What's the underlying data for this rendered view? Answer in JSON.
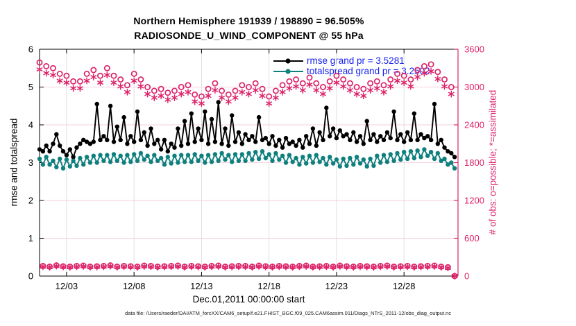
{
  "title": {
    "line1": "Northern Hemisphere 191939 / 198890 = 96.505%",
    "line2": "RADIOSONDE_U_WIND_COMPONENT @ 55 hPa"
  },
  "footer": {
    "text": "data file: /Users/raeder/DAI/ATM_forcXX/CAM6_setup/f.e21.FHIST_BGC.f09_025.CAM6assim.011/Diags_NTrS_2011-12/obs_diag_output.nc"
  },
  "colors": {
    "obs_pink": "#dc2369",
    "grid_pink": "#f5cfdd",
    "grid_gray": "#dcdcdc",
    "rmse_black": "#000000",
    "spread_teal": "#0e807e",
    "legend_text_blue": "#1520f0",
    "axis_black": "#000000"
  },
  "chart_data": {
    "type": "line",
    "title": "Northern Hemisphere 191939 / 198890 = 96.505%",
    "subtitle": "RADIOSONDE_U_WIND_COMPONENT @ 55 hPa",
    "xlabel": "Dec.01,2011 00:00:00 start",
    "ylabel_left": "rmse and totalspread",
    "ylabel_right": "# of obs: o=possible; *=assimilated",
    "ylim_left": [
      0,
      6
    ],
    "yticks_left": [
      0,
      1,
      2,
      3,
      4,
      5,
      6
    ],
    "ylim_right": [
      0,
      3600
    ],
    "yticks_right": [
      0,
      600,
      1200,
      1800,
      2400,
      3000,
      3600
    ],
    "x_range_days": [
      1,
      32
    ],
    "x_tick_days": [
      3,
      8,
      13,
      18,
      23,
      28
    ],
    "x_tick_labels": [
      "12/03",
      "12/08",
      "12/13",
      "12/18",
      "12/23",
      "12/28"
    ],
    "time_start": "2011-12-01 00:00",
    "time_step_hours": 6,
    "n_times": 124,
    "grid": true,
    "legend_position": "top-right-inside",
    "series": [
      {
        "name": "rmse grand pr = 3.5281",
        "axis": "left",
        "color": "#000000",
        "marker": "filled-circle",
        "line": true,
        "values": [
          3.35,
          3.3,
          3.45,
          3.3,
          3.5,
          3.75,
          3.45,
          3.3,
          3.2,
          3.35,
          3.15,
          3.4,
          3.5,
          3.6,
          3.55,
          3.5,
          3.55,
          4.55,
          3.6,
          3.7,
          3.6,
          4.5,
          3.55,
          3.95,
          3.6,
          4.2,
          3.5,
          3.7,
          3.55,
          4.35,
          3.6,
          3.8,
          3.45,
          3.9,
          3.5,
          3.6,
          3.35,
          3.6,
          3.3,
          3.5,
          3.4,
          3.9,
          3.45,
          4.1,
          3.5,
          4.3,
          3.55,
          3.9,
          3.6,
          4.35,
          3.5,
          4.15,
          3.55,
          4.6,
          3.5,
          3.9,
          3.45,
          4.25,
          3.55,
          3.8,
          3.5,
          3.75,
          3.6,
          3.7,
          3.55,
          4.2,
          3.6,
          3.65,
          3.5,
          3.7,
          3.45,
          3.6,
          3.4,
          3.65,
          3.5,
          3.55,
          3.45,
          3.6,
          3.4,
          3.7,
          3.5,
          3.9,
          3.45,
          3.8,
          3.6,
          4.45,
          3.7,
          3.9,
          3.65,
          3.85,
          3.7,
          3.75,
          3.6,
          3.8,
          3.55,
          3.7,
          3.5,
          4.1,
          3.6,
          3.75,
          3.55,
          3.7,
          3.6,
          3.8,
          3.65,
          4.35,
          3.6,
          3.75,
          3.55,
          3.8,
          3.6,
          4.3,
          3.6,
          3.75,
          3.65,
          3.7,
          3.6,
          4.55,
          3.5,
          3.6,
          3.4,
          3.3,
          3.25,
          3.15
        ]
      },
      {
        "name": "totalspread grand pr = 3.2502",
        "axis": "left",
        "color": "#0e807e",
        "marker": "filled-circle",
        "line": true,
        "values": [
          3.1,
          2.95,
          3.15,
          2.95,
          3.05,
          2.88,
          3.1,
          2.85,
          3.08,
          2.9,
          3.05,
          2.92,
          3.12,
          2.95,
          3.15,
          3.0,
          3.18,
          3.0,
          3.2,
          3.05,
          3.2,
          3.02,
          3.22,
          3.05,
          3.18,
          3.0,
          3.2,
          3.02,
          3.22,
          3.05,
          3.25,
          3.08,
          3.18,
          3.02,
          3.2,
          3.05,
          3.12,
          2.95,
          3.15,
          2.98,
          3.18,
          3.0,
          3.2,
          3.02,
          3.2,
          3.02,
          3.22,
          3.05,
          3.18,
          3.0,
          3.2,
          3.02,
          3.22,
          3.05,
          3.25,
          3.08,
          3.2,
          3.02,
          3.22,
          3.05,
          3.22,
          3.05,
          3.25,
          3.08,
          3.28,
          3.1,
          3.3,
          3.12,
          3.22,
          3.05,
          3.25,
          3.08,
          3.18,
          3.0,
          3.2,
          3.02,
          3.12,
          2.95,
          3.15,
          2.98,
          3.18,
          3.0,
          3.2,
          3.02,
          3.12,
          2.95,
          3.15,
          2.98,
          3.08,
          2.9,
          3.1,
          2.92,
          3.12,
          2.95,
          3.15,
          2.98,
          3.08,
          2.9,
          3.1,
          2.92,
          3.18,
          3.0,
          3.2,
          3.02,
          3.22,
          3.05,
          3.25,
          3.08,
          3.28,
          3.1,
          3.3,
          3.12,
          3.32,
          3.15,
          3.35,
          3.18,
          3.28,
          3.1,
          3.25,
          3.05,
          3.1,
          2.95,
          3.0,
          2.85
        ]
      },
      {
        "name": "# of obs possible",
        "axis": "right",
        "color": "#dc2369",
        "marker": "open-circle",
        "line": false,
        "values": [
          3390,
          160,
          3330,
          150,
          3300,
          170,
          3210,
          155,
          3180,
          150,
          3090,
          160,
          3090,
          165,
          3210,
          150,
          3270,
          155,
          3180,
          160,
          3300,
          170,
          3180,
          150,
          3120,
          160,
          3030,
          155,
          3210,
          150,
          3120,
          165,
          3000,
          160,
          2940,
          150,
          2970,
          155,
          2910,
          160,
          2940,
          165,
          3000,
          150,
          3030,
          160,
          2880,
          155,
          2850,
          150,
          2970,
          160,
          3060,
          165,
          2940,
          150,
          2880,
          155,
          2940,
          160,
          3030,
          160,
          3000,
          150,
          3060,
          165,
          2970,
          155,
          2850,
          150,
          2940,
          160,
          3030,
          155,
          3090,
          150,
          3120,
          160,
          3060,
          165,
          3150,
          150,
          3060,
          155,
          3000,
          160,
          3090,
          150,
          3180,
          165,
          3120,
          155,
          3060,
          150,
          3000,
          160,
          2970,
          155,
          3060,
          150,
          3090,
          160,
          3030,
          165,
          3120,
          150,
          3210,
          155,
          3180,
          160,
          3120,
          150,
          3270,
          155,
          3330,
          160,
          3360,
          165,
          3240,
          150,
          3120,
          140,
          3000,
          0
        ]
      },
      {
        "name": "# of obs assimilated",
        "axis": "right",
        "color": "#dc2369",
        "marker": "asterisk",
        "line": false,
        "values": [
          3280,
          150,
          3220,
          140,
          3190,
          160,
          3100,
          145,
          3070,
          140,
          2980,
          150,
          2980,
          155,
          3100,
          140,
          3160,
          145,
          3070,
          150,
          3190,
          160,
          3070,
          140,
          3010,
          150,
          2920,
          145,
          3100,
          140,
          3010,
          155,
          2890,
          150,
          2830,
          140,
          2860,
          145,
          2800,
          150,
          2830,
          155,
          2890,
          140,
          2920,
          150,
          2770,
          145,
          2740,
          140,
          2860,
          150,
          2950,
          155,
          2830,
          140,
          2770,
          145,
          2830,
          150,
          2920,
          150,
          2890,
          140,
          2950,
          155,
          2860,
          145,
          2740,
          140,
          2830,
          150,
          2920,
          145,
          2980,
          140,
          3010,
          150,
          2950,
          155,
          3040,
          140,
          2950,
          145,
          2890,
          150,
          2980,
          140,
          3070,
          155,
          3010,
          145,
          2950,
          140,
          2890,
          150,
          2860,
          145,
          2950,
          140,
          2980,
          150,
          2920,
          155,
          3010,
          140,
          3100,
          145,
          3070,
          150,
          3010,
          140,
          3160,
          145,
          3220,
          150,
          3250,
          155,
          3130,
          140,
          3010,
          130,
          2890,
          0
        ]
      }
    ]
  }
}
